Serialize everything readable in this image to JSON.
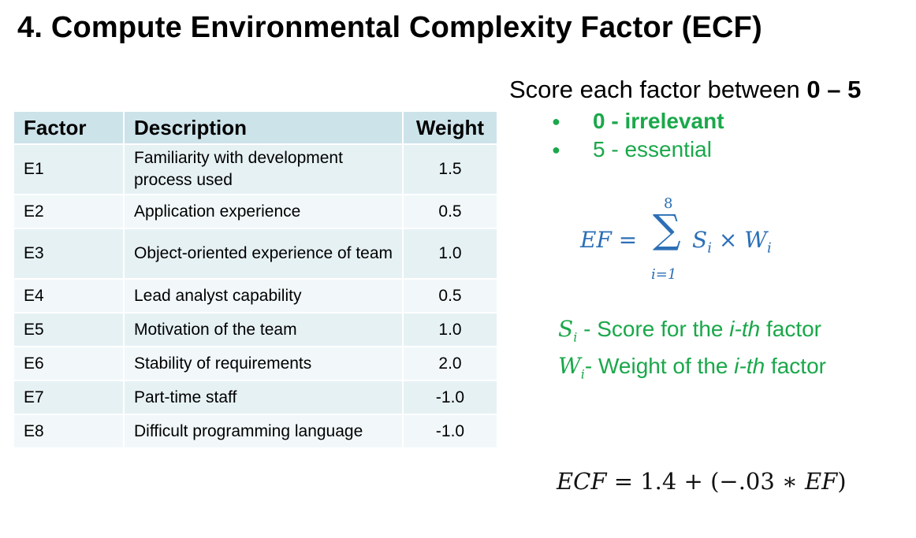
{
  "title": "4. Compute Environmental Complexity Factor (ECF)",
  "table": {
    "headers": [
      "Factor",
      "Description",
      "Weight"
    ],
    "rows": [
      {
        "factor": "E1",
        "description": "Familiarity with development process used",
        "weight": "1.5"
      },
      {
        "factor": "E2",
        "description": "Application experience",
        "weight": "0.5"
      },
      {
        "factor": "E3",
        "description": "Object-oriented experience of team",
        "weight": "1.0"
      },
      {
        "factor": "E4",
        "description": "Lead analyst capability",
        "weight": "0.5"
      },
      {
        "factor": "E5",
        "description": "Motivation of the team",
        "weight": "1.0"
      },
      {
        "factor": "E6",
        "description": "Stability of requirements",
        "weight": "2.0"
      },
      {
        "factor": "E7",
        "description": "Part-time staff",
        "weight": "-1.0"
      },
      {
        "factor": "E8",
        "description": "Difficult programming language",
        "weight": "-1.0"
      }
    ]
  },
  "score": {
    "prefix": "Score each factor between ",
    "range": "0 – 5",
    "bullets": [
      {
        "value": "0 -",
        "label": "irrelevant"
      },
      {
        "value": "5 -",
        "label": "essential"
      }
    ]
  },
  "ef_formula": {
    "lhs": "EF =",
    "upper": "8",
    "lower": "i=1",
    "term_s": "S",
    "term_times": " × ",
    "term_w": "W",
    "sub": "i"
  },
  "legend": [
    {
      "symbol": "S",
      "sub": "i",
      "text_before": " - Score for the ",
      "emph": "i-th",
      "text_after": " factor"
    },
    {
      "symbol": "W",
      "sub": "i",
      "text_before": "- Weight of the ",
      "emph": "i-th",
      "text_after": " factor"
    }
  ],
  "ecf_formula": {
    "lhs": "ECF",
    "middle": " = 1.4 + (−.03 ∗ ",
    "ef": "EF",
    "close": ")"
  },
  "colors": {
    "header_bg": "#cde3ea",
    "row_odd": "#e6f1f4",
    "row_even": "#f2f8fa",
    "green": "#1aa84a",
    "blue_math": "#2b6fb6"
  }
}
